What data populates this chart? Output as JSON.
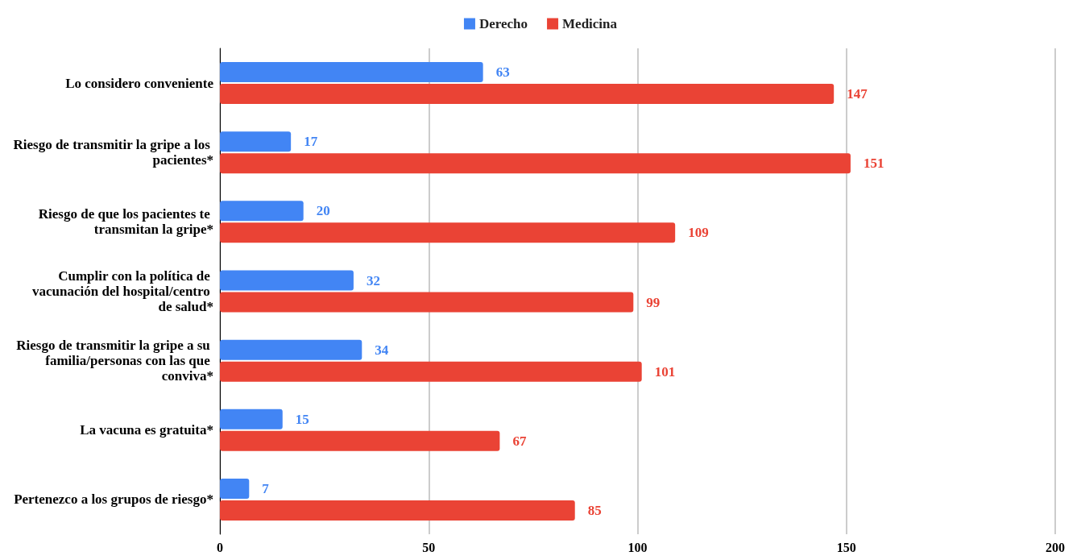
{
  "chart_data": {
    "type": "bar",
    "orientation": "horizontal",
    "categories": [
      "Lo considero conveniente",
      "Riesgo de transmitir la gripe a los pacientes*",
      "Riesgo de que los pacientes te transmitan la gripe*",
      "Cumplir con la política de vacunación del hospital/centro de salud*",
      "Riesgo de transmitir la gripe a su familia/personas con las que conviva*",
      "La vacuna es gratuita*",
      "Pertenezco a los grupos de riesgo*"
    ],
    "series": [
      {
        "name": "Derecho",
        "color": "#4285f4",
        "values": [
          63,
          17,
          20,
          32,
          34,
          15,
          7
        ]
      },
      {
        "name": "Medicina",
        "color": "#ea4335",
        "values": [
          147,
          151,
          109,
          99,
          101,
          67,
          85
        ]
      }
    ],
    "xlim": [
      0,
      200
    ],
    "xticks": [
      0,
      50,
      100,
      150,
      200
    ],
    "grid": "x",
    "legend": "top",
    "data_labels": true
  }
}
